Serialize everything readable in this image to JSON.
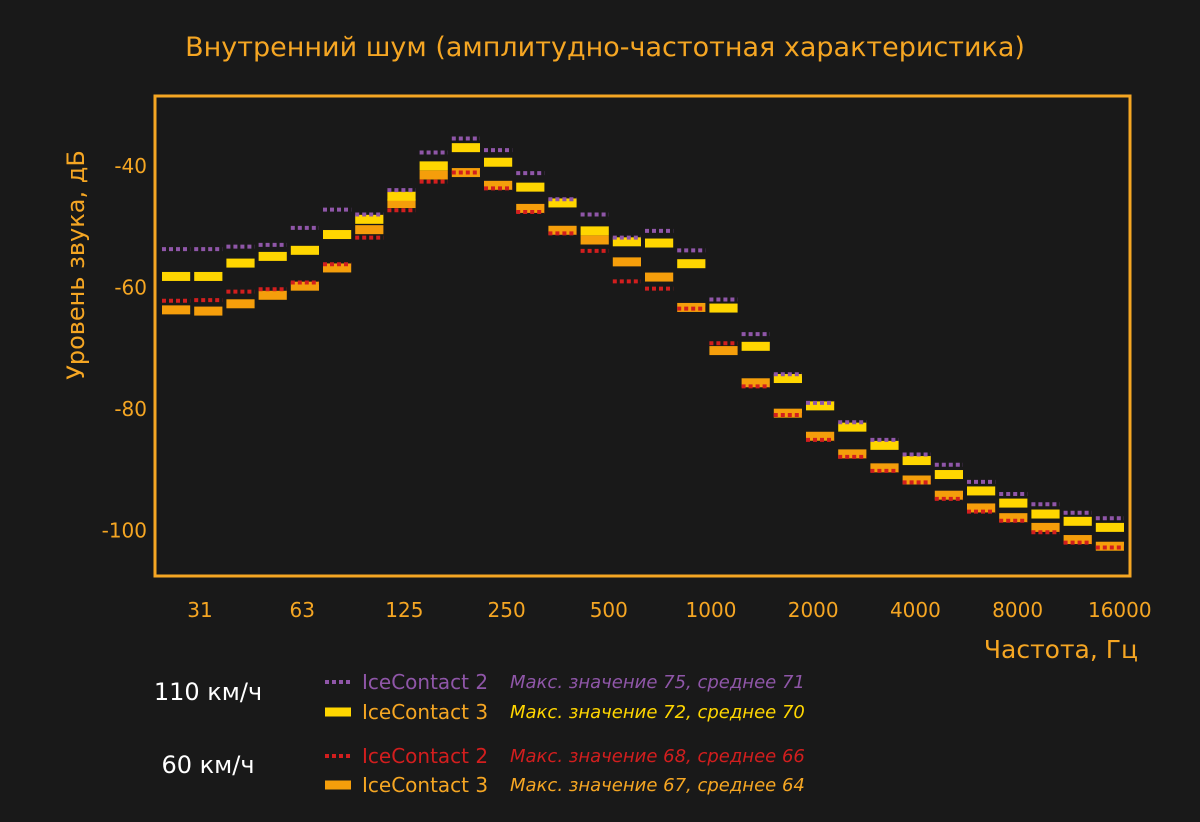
{
  "colors": {
    "background": "#191919",
    "accent": "#F5A623",
    "purple": "#8F56A8",
    "yellow": "#FFD600",
    "red": "#D21E1E",
    "orange": "#F59E0B",
    "white": "#FFFFFF"
  },
  "chart_data": {
    "type": "line",
    "title": "Внутренний шум (амплитудно-частотная характеристика)",
    "xlabel": "Частота, Гц",
    "ylabel": "Уровень звука, дБ",
    "ylim": [
      -107.5,
      -28.5
    ],
    "yticks": [
      -40,
      -60,
      -80,
      -100
    ],
    "ytick_labels": [
      "-40",
      "-60",
      "-80",
      "-100"
    ],
    "xtick_labels": [
      "31",
      "63",
      "125",
      "250",
      "500",
      "1000",
      "2000",
      "4000",
      "8000",
      "16000"
    ],
    "grid": false,
    "legend_groups": [
      {
        "speed": "110 км/ч",
        "series_indices": [
          0,
          1
        ]
      },
      {
        "speed": "60 км/ч",
        "series_indices": [
          2,
          3
        ]
      }
    ],
    "series": [
      {
        "name": "IceContact 2",
        "note": "Макс. значение 75, среднее 71",
        "style": "dotted",
        "color": "#8F56A8",
        "values": [
          -53.7,
          -53.7,
          -53.3,
          -53.0,
          -50.2,
          -47.2,
          -48.0,
          -44.0,
          -37.8,
          -35.5,
          -37.4,
          -41.2,
          -45.5,
          -48.0,
          -51.8,
          -50.7,
          -53.9,
          -62.0,
          -67.7,
          -74.3,
          -79.0,
          -82.2,
          -85.1,
          -87.5,
          -89.2,
          -92.0,
          -94.0,
          -95.7,
          -97.1,
          -98.0
        ]
      },
      {
        "name": "IceContact 3",
        "note": "Макс. значение 72, среднее 70",
        "style": "solid",
        "color": "#FFD600",
        "values": [
          -58.2,
          -58.2,
          -56.0,
          -54.9,
          -53.9,
          -51.3,
          -48.8,
          -45.0,
          -40.0,
          -37.0,
          -39.4,
          -43.5,
          -46.1,
          -50.7,
          -52.5,
          -52.7,
          -56.1,
          -63.4,
          -69.7,
          -75.0,
          -79.5,
          -83.0,
          -86.0,
          -88.5,
          -90.8,
          -93.5,
          -95.5,
          -97.3,
          -98.5,
          -99.5
        ]
      },
      {
        "name": "IceContact 2",
        "note": "Макс. значение 68, среднее 66",
        "style": "dotted",
        "color": "#D21E1E",
        "values": [
          -62.2,
          -62.1,
          -60.7,
          -60.3,
          -59.2,
          -56.2,
          -51.8,
          -47.3,
          -42.6,
          -41.1,
          -43.7,
          -47.6,
          -51.1,
          -54.0,
          -59.0,
          -60.2,
          -63.5,
          -69.2,
          -76.3,
          -81.0,
          -85.1,
          -87.9,
          -90.2,
          -92.1,
          -94.8,
          -96.9,
          -98.4,
          -100.3,
          -102.0,
          -102.8
        ]
      },
      {
        "name": "IceContact 3",
        "note": "Макс. значение 67, среднее 64",
        "style": "solid",
        "color": "#F59E0B",
        "values": [
          -63.7,
          -63.9,
          -62.7,
          -61.3,
          -59.8,
          -56.8,
          -50.5,
          -46.2,
          -41.5,
          -41.1,
          -43.2,
          -47.0,
          -50.6,
          -52.2,
          -55.8,
          -58.3,
          -63.3,
          -70.4,
          -75.7,
          -80.7,
          -84.5,
          -87.4,
          -89.7,
          -91.7,
          -94.2,
          -96.3,
          -97.9,
          -99.5,
          -101.5,
          -102.6
        ]
      }
    ]
  }
}
